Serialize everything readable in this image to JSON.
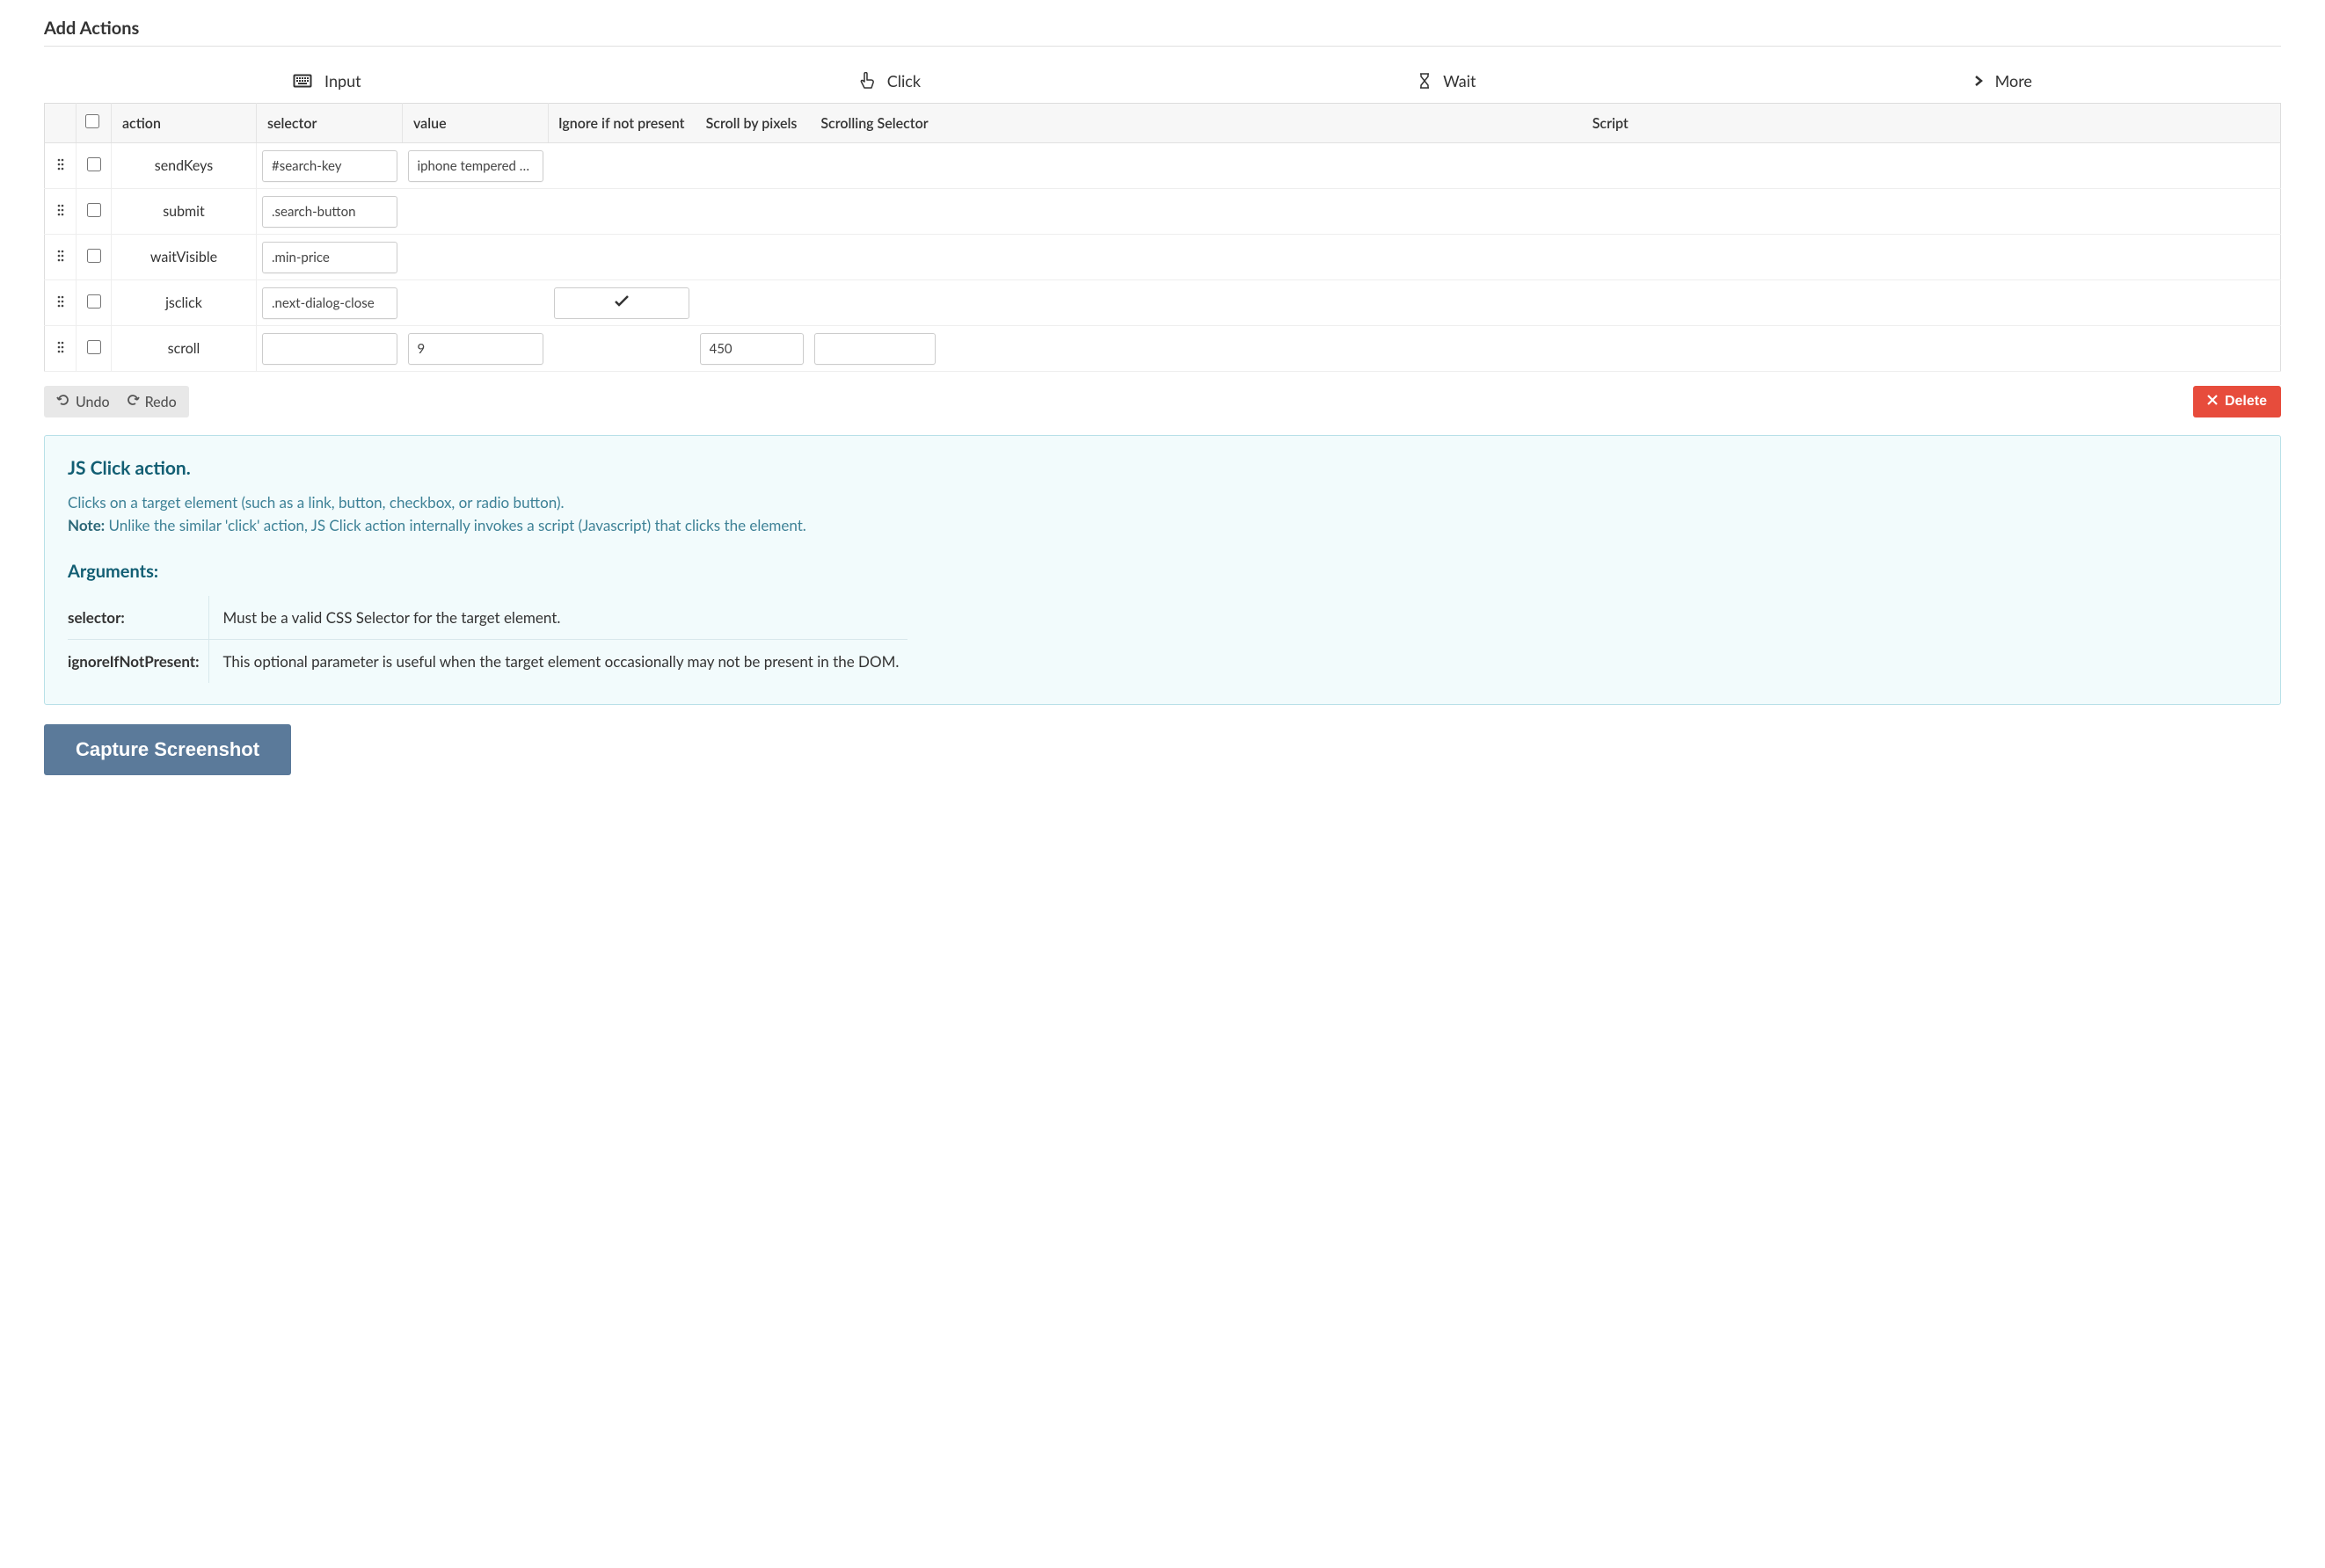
{
  "page": {
    "title": "Add Actions"
  },
  "tabs": {
    "input": "Input",
    "click": "Click",
    "wait": "Wait",
    "more": "More"
  },
  "table": {
    "headers": {
      "action": "action",
      "selector": "selector",
      "value": "value",
      "ignore": "Ignore if not present",
      "scroll_px": "Scroll by pixels",
      "scroll_sel": "Scrolling Selector",
      "script": "Script"
    },
    "rows": [
      {
        "action": "sendKeys",
        "selector": "#search-key",
        "value": "iphone tempered g…",
        "ignore": false,
        "scroll_px": "",
        "scroll_sel": "",
        "script": "",
        "has_selector": true,
        "has_value": true,
        "has_scrollpx": false,
        "has_scrollsel": false
      },
      {
        "action": "submit",
        "selector": ".search-button",
        "value": "",
        "ignore": false,
        "scroll_px": "",
        "scroll_sel": "",
        "script": "",
        "has_selector": true,
        "has_value": false,
        "has_scrollpx": false,
        "has_scrollsel": false
      },
      {
        "action": "waitVisible",
        "selector": ".min-price",
        "value": "",
        "ignore": false,
        "scroll_px": "",
        "scroll_sel": "",
        "script": "",
        "has_selector": true,
        "has_value": false,
        "has_scrollpx": false,
        "has_scrollsel": false
      },
      {
        "action": "jsclick",
        "selector": ".next-dialog-close",
        "value": "",
        "ignore": true,
        "scroll_px": "",
        "scroll_sel": "",
        "script": "",
        "has_selector": true,
        "has_value": false,
        "has_scrollpx": false,
        "has_scrollsel": false
      },
      {
        "action": "scroll",
        "selector": "",
        "value": "9",
        "ignore": false,
        "scroll_px": "450",
        "scroll_sel": "",
        "script": "",
        "has_selector": true,
        "has_value": true,
        "has_scrollpx": true,
        "has_scrollsel": true
      }
    ]
  },
  "toolbar": {
    "undo": "Undo",
    "redo": "Redo",
    "delete": "Delete"
  },
  "info": {
    "title": "JS Click action.",
    "desc_line1": "Clicks on a target element (such as a link, button, checkbox, or radio button).",
    "note_label": "Note:",
    "note_text": " Unlike the similar 'click' action, JS Click action internally invokes a script (Javascript) that clicks the element.",
    "args_title": "Arguments:",
    "args": [
      {
        "name": "selector:",
        "desc": "Must be a valid CSS Selector for the target element."
      },
      {
        "name": "ignoreIfNotPresent:",
        "desc": "This optional parameter is useful when the target element occasionally may not be present in the DOM."
      }
    ]
  },
  "capture_label": "Capture Screenshot",
  "colors": {
    "delete_bg": "#e74c3c",
    "capture_bg": "#5b7a9a",
    "info_bg": "#f2fbfc",
    "info_border": "#b8e0e8",
    "info_title": "#125e73"
  }
}
